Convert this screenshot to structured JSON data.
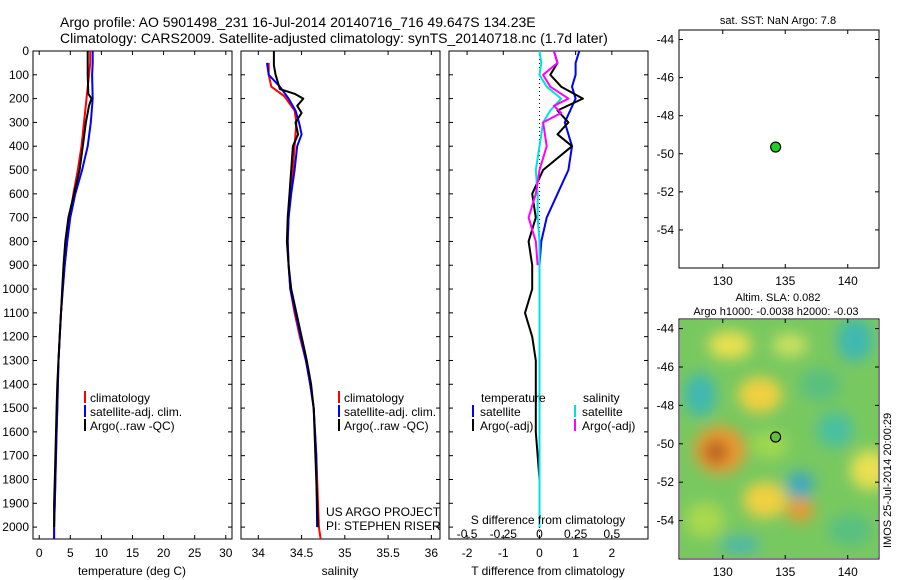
{
  "header": {
    "title_line1": "Argo profile: AO 5901498_231 16-Jul-2014 20140716_716 49.647S 134.23E",
    "title_line2": "Climatology: CARS2009. Satellite-adjusted climatology: synTS_20140718.nc (1.7d later)"
  },
  "colors": {
    "climatology": "#ff0000",
    "satellite": "#0000ff",
    "argo": "#000000",
    "sal_satellite": "#00e0e0",
    "sal_argo": "#ff00ff",
    "argo_point": "#22cc22"
  },
  "legend": {
    "climatology": "climatology",
    "satellite_adj": "satellite-adj. clim.",
    "argo": "Argo(..raw -QC)"
  },
  "diff_legend": {
    "temperature_head": "temperature",
    "salinity_head": "salinity",
    "satellite": "satellite",
    "argo_adj": "Argo(-adj)"
  },
  "project": {
    "line1": "US ARGO PROJECT",
    "line2": "PI: STEPHEN RISER"
  },
  "sst_panel": {
    "title": "sat. SST: NaN Argo: 7.8"
  },
  "sla_panel": {
    "title_line1": "Altim. SLA: 0.082",
    "title_line2": "Argo h1000: -0.0038 h2000: -0.03",
    "stamp": "IMOS 25-Jul-2014 20:00:29"
  },
  "chart_data": [
    {
      "type": "line",
      "name": "temperature",
      "xlabel": "temperature (deg C)",
      "ylabel": "",
      "xlim": [
        -1,
        31
      ],
      "ylim": [
        2050,
        0
      ],
      "xticks": [
        0,
        5,
        10,
        15,
        20,
        25,
        30
      ],
      "yticks": [
        0,
        100,
        200,
        300,
        400,
        500,
        600,
        700,
        800,
        900,
        1000,
        1100,
        1200,
        1300,
        1400,
        1500,
        1600,
        1700,
        1800,
        1900,
        2000
      ],
      "series": [
        {
          "name": "climatology",
          "color": "#ff0000",
          "points": [
            [
              8.2,
              0
            ],
            [
              8.2,
              50
            ],
            [
              8.0,
              100
            ],
            [
              7.6,
              200
            ],
            [
              7.2,
              300
            ],
            [
              6.8,
              400
            ],
            [
              6.2,
              500
            ],
            [
              5.5,
              600
            ],
            [
              4.9,
              700
            ],
            [
              4.5,
              800
            ],
            [
              4.1,
              900
            ],
            [
              3.8,
              1000
            ],
            [
              3.5,
              1100
            ],
            [
              3.3,
              1200
            ],
            [
              3.1,
              1300
            ],
            [
              3.0,
              1400
            ],
            [
              2.9,
              1500
            ],
            [
              2.8,
              1600
            ],
            [
              2.7,
              1700
            ],
            [
              2.6,
              1800
            ],
            [
              2.5,
              1900
            ],
            [
              2.4,
              2000
            ],
            [
              2.4,
              2050
            ]
          ]
        },
        {
          "name": "satellite-adj. clim.",
          "color": "#0000ff",
          "points": [
            [
              8.6,
              0
            ],
            [
              8.6,
              50
            ],
            [
              8.5,
              100
            ],
            [
              8.6,
              200
            ],
            [
              8.3,
              300
            ],
            [
              7.8,
              400
            ],
            [
              6.9,
              500
            ],
            [
              5.8,
              600
            ],
            [
              5.0,
              700
            ],
            [
              4.5,
              800
            ],
            [
              4.1,
              900
            ],
            [
              3.8,
              1000
            ],
            [
              3.5,
              1100
            ],
            [
              3.3,
              1200
            ],
            [
              3.1,
              1300
            ],
            [
              3.0,
              1400
            ],
            [
              2.9,
              1500
            ],
            [
              2.8,
              1600
            ],
            [
              2.7,
              1700
            ],
            [
              2.6,
              1800
            ],
            [
              2.5,
              1900
            ],
            [
              2.4,
              2000
            ],
            [
              2.4,
              2050
            ]
          ]
        },
        {
          "name": "Argo(..raw -QC)",
          "color": "#000000",
          "points": [
            [
              7.8,
              0
            ],
            [
              7.8,
              100
            ],
            [
              7.9,
              180
            ],
            [
              8.4,
              200
            ],
            [
              8.0,
              230
            ],
            [
              7.5,
              300
            ],
            [
              7.0,
              400
            ],
            [
              6.5,
              500
            ],
            [
              5.6,
              600
            ],
            [
              4.7,
              700
            ],
            [
              4.2,
              800
            ],
            [
              3.9,
              900
            ],
            [
              3.7,
              1000
            ],
            [
              3.5,
              1100
            ],
            [
              3.3,
              1200
            ],
            [
              3.1,
              1300
            ],
            [
              2.9,
              1400
            ],
            [
              2.8,
              1500
            ],
            [
              2.7,
              1600
            ],
            [
              2.6,
              1700
            ],
            [
              2.5,
              1800
            ],
            [
              2.4,
              1900
            ],
            [
              2.4,
              2000
            ]
          ]
        }
      ]
    },
    {
      "type": "line",
      "name": "salinity",
      "xlabel": "salinity",
      "ylabel": "",
      "xlim": [
        33.8,
        36.1
      ],
      "ylim": [
        2050,
        0
      ],
      "xticks": [
        34,
        34.5,
        35,
        35.5,
        36
      ],
      "yticks": [
        0,
        100,
        200,
        300,
        400,
        500,
        600,
        700,
        800,
        900,
        1000,
        1100,
        1200,
        1300,
        1400,
        1500,
        1600,
        1700,
        1800,
        1900,
        2000
      ],
      "series": [
        {
          "name": "climatology",
          "color": "#ff0000",
          "points": [
            [
              34.12,
              50
            ],
            [
              34.12,
              100
            ],
            [
              34.15,
              150
            ],
            [
              34.3,
              190
            ],
            [
              34.42,
              250
            ],
            [
              34.44,
              300
            ],
            [
              34.42,
              400
            ],
            [
              34.4,
              500
            ],
            [
              34.37,
              600
            ],
            [
              34.35,
              700
            ],
            [
              34.34,
              800
            ],
            [
              34.35,
              900
            ],
            [
              34.37,
              1000
            ],
            [
              34.42,
              1100
            ],
            [
              34.48,
              1200
            ],
            [
              34.55,
              1300
            ],
            [
              34.6,
              1400
            ],
            [
              34.64,
              1500
            ],
            [
              34.67,
              1700
            ],
            [
              34.7,
              2000
            ],
            [
              34.72,
              2050
            ]
          ]
        },
        {
          "name": "satellite-adj. clim.",
          "color": "#0000ff",
          "points": [
            [
              34.1,
              50
            ],
            [
              34.12,
              100
            ],
            [
              34.25,
              150
            ],
            [
              34.35,
              200
            ],
            [
              34.43,
              250
            ],
            [
              34.47,
              300
            ],
            [
              34.5,
              350
            ],
            [
              34.45,
              400
            ],
            [
              34.42,
              500
            ],
            [
              34.38,
              600
            ],
            [
              34.35,
              700
            ],
            [
              34.34,
              800
            ],
            [
              34.35,
              900
            ],
            [
              34.37,
              1000
            ],
            [
              34.43,
              1100
            ],
            [
              34.49,
              1200
            ],
            [
              34.55,
              1300
            ],
            [
              34.6,
              1400
            ],
            [
              34.64,
              1500
            ],
            [
              34.67,
              1700
            ],
            [
              34.68,
              2000
            ]
          ]
        },
        {
          "name": "Argo(..raw -QC)",
          "color": "#000000",
          "points": [
            [
              34.18,
              0
            ],
            [
              34.18,
              60
            ],
            [
              34.2,
              100
            ],
            [
              34.25,
              160
            ],
            [
              34.42,
              180
            ],
            [
              34.52,
              200
            ],
            [
              34.45,
              230
            ],
            [
              34.5,
              260
            ],
            [
              34.43,
              300
            ],
            [
              34.46,
              350
            ],
            [
              34.4,
              400
            ],
            [
              34.38,
              500
            ],
            [
              34.36,
              600
            ],
            [
              34.34,
              700
            ],
            [
              34.33,
              800
            ],
            [
              34.35,
              900
            ],
            [
              34.38,
              1000
            ],
            [
              34.44,
              1100
            ],
            [
              34.5,
              1200
            ],
            [
              34.56,
              1300
            ],
            [
              34.61,
              1400
            ],
            [
              34.64,
              1500
            ],
            [
              34.66,
              1700
            ],
            [
              34.69,
              2000
            ]
          ]
        }
      ]
    },
    {
      "type": "line",
      "name": "difference",
      "xlabel": "T difference from climatology",
      "xlabel2": "S difference from climatology",
      "xlim": [
        -2.5,
        3
      ],
      "ylim": [
        2050,
        0
      ],
      "xticks": [
        -2,
        -1,
        0,
        1,
        2
      ],
      "xticks_top": [
        -0.5,
        -0.25,
        0,
        0.25,
        0.5
      ],
      "series": [
        {
          "name": "temperature satellite",
          "color": "#0000ff",
          "points": [
            [
              1.1,
              0
            ],
            [
              1.0,
              50
            ],
            [
              1.0,
              100
            ],
            [
              0.9,
              150
            ],
            [
              1.0,
              200
            ],
            [
              0.7,
              300
            ],
            [
              0.9,
              400
            ],
            [
              0.8,
              500
            ],
            [
              0.5,
              600
            ],
            [
              0.2,
              700
            ],
            [
              0.05,
              800
            ],
            [
              0.0,
              900
            ],
            [
              0.0,
              1200
            ],
            [
              0.0,
              1500
            ],
            [
              0.0,
              2000
            ]
          ]
        },
        {
          "name": "temperature Argo(-adj)",
          "color": "#000000",
          "points": [
            [
              0.4,
              0
            ],
            [
              0.5,
              50
            ],
            [
              0.3,
              100
            ],
            [
              0.6,
              150
            ],
            [
              1.2,
              200
            ],
            [
              0.5,
              250
            ],
            [
              0.8,
              300
            ],
            [
              0.5,
              350
            ],
            [
              0.9,
              400
            ],
            [
              0.1,
              500
            ],
            [
              -0.2,
              600
            ],
            [
              -0.1,
              700
            ],
            [
              -0.3,
              800
            ],
            [
              -0.2,
              900
            ],
            [
              -0.2,
              1000
            ],
            [
              -0.4,
              1100
            ],
            [
              -0.2,
              1200
            ],
            [
              -0.1,
              1300
            ],
            [
              -0.1,
              1400
            ],
            [
              -0.1,
              1600
            ],
            [
              0.0,
              1800
            ],
            [
              0.0,
              2000
            ]
          ]
        },
        {
          "name": "salinity satellite",
          "color": "#00e0e0",
          "points": [
            [
              0.0,
              0
            ],
            [
              0.05,
              50
            ],
            [
              0.0,
              100
            ],
            [
              0.2,
              150
            ],
            [
              0.6,
              200
            ],
            [
              0.3,
              250
            ],
            [
              0.1,
              300
            ],
            [
              0.0,
              400
            ],
            [
              -0.1,
              500
            ],
            [
              -0.05,
              600
            ],
            [
              -0.05,
              700
            ],
            [
              0.0,
              800
            ],
            [
              0.0,
              1200
            ],
            [
              0.0,
              2000
            ]
          ]
        },
        {
          "name": "salinity Argo(-adj)",
          "color": "#ff00ff",
          "points": [
            [
              0.4,
              0
            ],
            [
              0.5,
              50
            ],
            [
              0.1,
              100
            ],
            [
              0.3,
              150
            ],
            [
              0.8,
              200
            ],
            [
              0.4,
              230
            ],
            [
              0.6,
              260
            ],
            [
              0.1,
              300
            ],
            [
              0.2,
              400
            ],
            [
              0.0,
              500
            ],
            [
              -0.1,
              600
            ],
            [
              -0.3,
              700
            ],
            [
              -0.1,
              800
            ],
            [
              -0.05,
              900
            ]
          ]
        }
      ]
    },
    {
      "type": "scatter",
      "name": "sst-map",
      "xlim": [
        126.5,
        142.5
      ],
      "ylim": [
        -56,
        -43.5
      ],
      "xticks": [
        130,
        135,
        140
      ],
      "yticks": [
        -44,
        -46,
        -48,
        -50,
        -52,
        -54
      ],
      "points": [
        {
          "lon": 134.23,
          "lat": -49.647
        }
      ]
    },
    {
      "type": "heatmap",
      "name": "sla-map",
      "xlim": [
        126.5,
        142.5
      ],
      "ylim": [
        -56,
        -43.5
      ],
      "xticks": [
        130,
        135,
        140
      ],
      "yticks": [
        -44,
        -46,
        -48,
        -50,
        -52,
        -54
      ],
      "points": [
        {
          "lon": 134.23,
          "lat": -49.647
        }
      ]
    }
  ]
}
